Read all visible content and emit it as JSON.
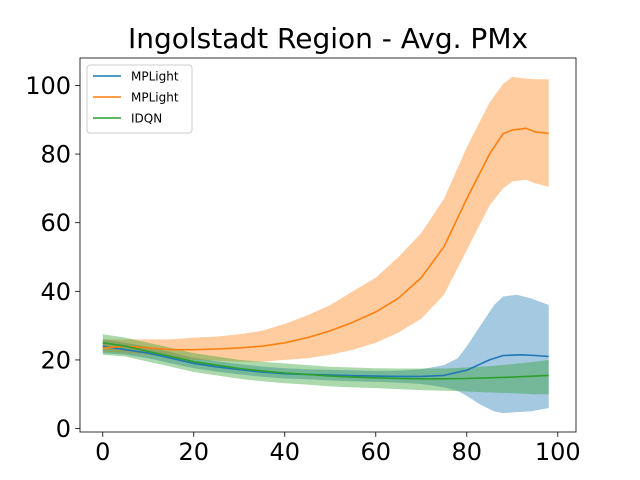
{
  "chart_data": {
    "type": "line",
    "title": "Ingolstadt Region - Avg. PMx",
    "xlabel": "",
    "ylabel": "",
    "xlim": [
      -5,
      104
    ],
    "ylim": [
      -1,
      108
    ],
    "xticks": [
      0,
      20,
      40,
      60,
      80,
      100
    ],
    "yticks": [
      0,
      20,
      40,
      60,
      80,
      100
    ],
    "grid": false,
    "legend_position": "top-left",
    "series": [
      {
        "name": "MPLight",
        "color": "#1f77b4",
        "points": [
          [
            0,
            24.0
          ],
          [
            5,
            23.0
          ],
          [
            10,
            22.0
          ],
          [
            15,
            20.5
          ],
          [
            20,
            19.0
          ],
          [
            25,
            18.0
          ],
          [
            30,
            17.2
          ],
          [
            35,
            16.5
          ],
          [
            40,
            16.0
          ],
          [
            45,
            15.8
          ],
          [
            50,
            15.6
          ],
          [
            55,
            15.4
          ],
          [
            60,
            15.3
          ],
          [
            65,
            15.2
          ],
          [
            70,
            15.2
          ],
          [
            75,
            15.5
          ],
          [
            80,
            17.0
          ],
          [
            85,
            20.0
          ],
          [
            88,
            21.3
          ],
          [
            92,
            21.5
          ],
          [
            95,
            21.3
          ],
          [
            98,
            21.0
          ]
        ],
        "band": [
          [
            0,
            22.0,
            26.0
          ],
          [
            5,
            21.5,
            25.0
          ],
          [
            10,
            20.5,
            23.8
          ],
          [
            15,
            19.0,
            22.3
          ],
          [
            20,
            17.6,
            20.6
          ],
          [
            25,
            16.6,
            19.6
          ],
          [
            30,
            15.8,
            18.8
          ],
          [
            35,
            15.1,
            18.1
          ],
          [
            40,
            14.6,
            17.6
          ],
          [
            45,
            14.4,
            17.3
          ],
          [
            50,
            14.0,
            17.1
          ],
          [
            55,
            13.8,
            17.0
          ],
          [
            60,
            13.6,
            16.8
          ],
          [
            65,
            13.4,
            16.9
          ],
          [
            70,
            13.0,
            17.3
          ],
          [
            75,
            12.0,
            18.5
          ],
          [
            78,
            11.0,
            20.5
          ],
          [
            80,
            9.5,
            24.0
          ],
          [
            83,
            7.0,
            30.0
          ],
          [
            86,
            5.0,
            36.0
          ],
          [
            88,
            4.5,
            38.5
          ],
          [
            91,
            4.8,
            39.0
          ],
          [
            94,
            5.0,
            38.0
          ],
          [
            96,
            5.5,
            37.0
          ],
          [
            98,
            6.0,
            36.0
          ]
        ]
      },
      {
        "name": "MPLight",
        "color": "#ff7f0e",
        "points": [
          [
            0,
            23.5
          ],
          [
            5,
            24.0
          ],
          [
            10,
            23.5
          ],
          [
            15,
            23.0
          ],
          [
            20,
            23.0
          ],
          [
            25,
            23.2
          ],
          [
            30,
            23.5
          ],
          [
            35,
            24.0
          ],
          [
            40,
            25.0
          ],
          [
            45,
            26.5
          ],
          [
            50,
            28.5
          ],
          [
            55,
            31.0
          ],
          [
            60,
            34.0
          ],
          [
            65,
            38.0
          ],
          [
            70,
            44.0
          ],
          [
            75,
            53.0
          ],
          [
            80,
            67.0
          ],
          [
            85,
            80.0
          ],
          [
            88,
            86.0
          ],
          [
            90,
            87.0
          ],
          [
            93,
            87.5
          ],
          [
            95,
            86.5
          ],
          [
            98,
            86.0
          ]
        ],
        "band": [
          [
            0,
            22.5,
            26.0
          ],
          [
            5,
            22.0,
            26.0
          ],
          [
            10,
            21.5,
            26.0
          ],
          [
            15,
            20.5,
            26.0
          ],
          [
            20,
            20.0,
            26.5
          ],
          [
            25,
            19.8,
            26.8
          ],
          [
            30,
            19.5,
            27.5
          ],
          [
            35,
            19.5,
            28.5
          ],
          [
            40,
            20.0,
            30.5
          ],
          [
            45,
            20.5,
            33.0
          ],
          [
            50,
            21.5,
            36.0
          ],
          [
            55,
            23.0,
            40.0
          ],
          [
            60,
            25.0,
            44.0
          ],
          [
            65,
            28.0,
            50.0
          ],
          [
            70,
            32.0,
            57.0
          ],
          [
            75,
            39.0,
            67.0
          ],
          [
            80,
            52.0,
            82.0
          ],
          [
            85,
            65.0,
            95.0
          ],
          [
            88,
            70.0,
            100.5
          ],
          [
            90,
            72.0,
            102.5
          ],
          [
            93,
            72.5,
            102.0
          ],
          [
            95,
            71.5,
            101.8
          ],
          [
            98,
            70.5,
            101.8
          ]
        ]
      },
      {
        "name": "IDQN",
        "color": "#2ca02c",
        "points": [
          [
            0,
            25.0
          ],
          [
            5,
            24.0
          ],
          [
            10,
            22.5
          ],
          [
            15,
            21.0
          ],
          [
            20,
            19.5
          ],
          [
            25,
            18.5
          ],
          [
            30,
            17.5
          ],
          [
            35,
            16.8
          ],
          [
            40,
            16.2
          ],
          [
            45,
            15.8
          ],
          [
            50,
            15.3
          ],
          [
            55,
            15.0
          ],
          [
            60,
            14.8
          ],
          [
            65,
            14.6
          ],
          [
            70,
            14.5
          ],
          [
            75,
            14.5
          ],
          [
            80,
            14.6
          ],
          [
            85,
            14.8
          ],
          [
            90,
            15.0
          ],
          [
            95,
            15.3
          ],
          [
            98,
            15.5
          ]
        ],
        "band": [
          [
            0,
            21.5,
            27.5
          ],
          [
            5,
            21.0,
            26.5
          ],
          [
            10,
            19.5,
            25.0
          ],
          [
            15,
            18.0,
            23.5
          ],
          [
            20,
            16.5,
            22.0
          ],
          [
            25,
            15.5,
            21.0
          ],
          [
            30,
            14.5,
            20.0
          ],
          [
            35,
            13.8,
            19.5
          ],
          [
            40,
            13.2,
            19.0
          ],
          [
            45,
            12.8,
            18.5
          ],
          [
            50,
            12.3,
            18.0
          ],
          [
            55,
            12.0,
            17.8
          ],
          [
            60,
            11.8,
            17.6
          ],
          [
            65,
            11.5,
            17.5
          ],
          [
            70,
            11.2,
            17.5
          ],
          [
            75,
            11.0,
            17.5
          ],
          [
            80,
            10.8,
            17.8
          ],
          [
            85,
            10.5,
            18.2
          ],
          [
            90,
            10.3,
            18.8
          ],
          [
            95,
            10.0,
            19.5
          ],
          [
            98,
            10.0,
            20.0
          ]
        ]
      }
    ]
  }
}
